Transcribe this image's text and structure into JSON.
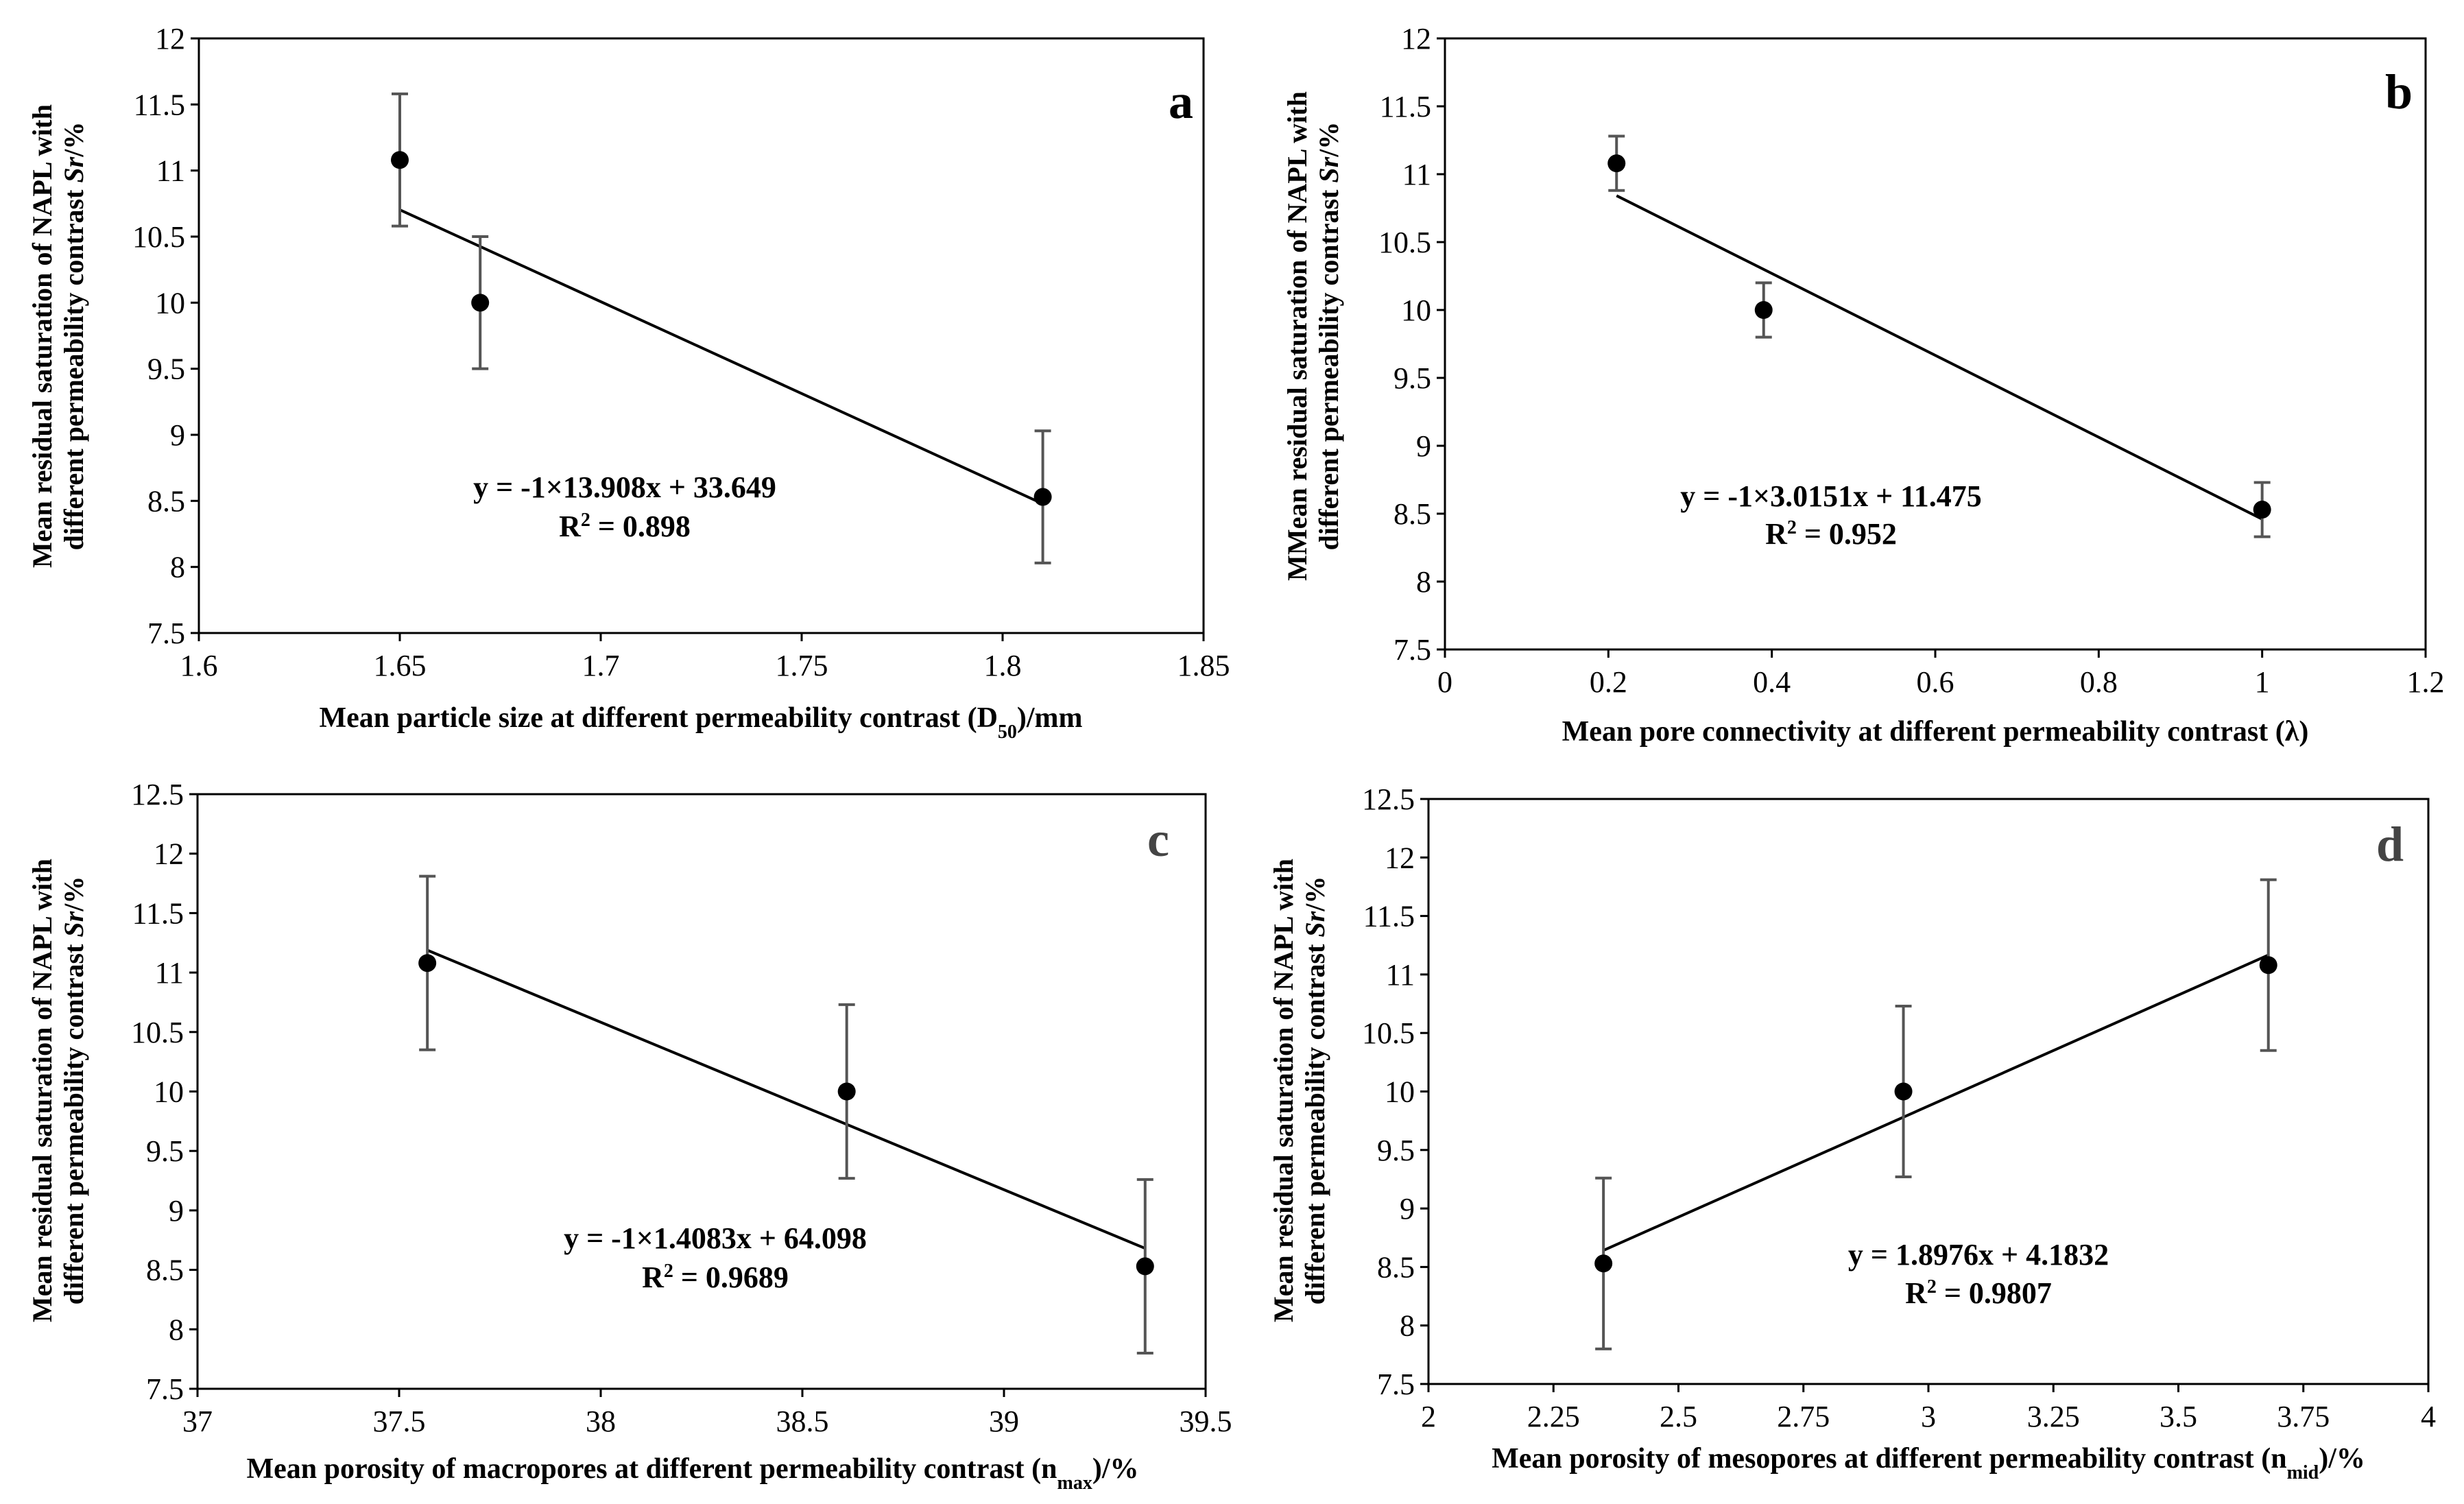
{
  "chart_data": [
    {
      "type": "scatter",
      "panel": "a",
      "xlabel": "Mean particle size at different permeability contrast (D",
      "xlabel_sub": "50",
      "xlabel_suffix": ")/mm",
      "ylabel_line1": "Mean residual saturation of NAPL with",
      "ylabel_line2": "different permeability contrast ",
      "ylabel_italic": "Sr",
      "ylabel_suffix": "/%",
      "xlim": [
        1.6,
        1.85
      ],
      "ylim": [
        7.5,
        12
      ],
      "xticks": [
        "1.6",
        "1.65",
        "1.7",
        "1.75",
        "1.8",
        "1.85"
      ],
      "yticks": [
        "7.5",
        "8",
        "8.5",
        "9",
        "9.5",
        "10",
        "10.5",
        "11",
        "11.5",
        "12"
      ],
      "series": [
        {
          "name": "data",
          "x": [
            1.65,
            1.67,
            1.81
          ],
          "y": [
            11.08,
            10.0,
            8.53
          ],
          "err": [
            0.5,
            0.5,
            0.5
          ]
        }
      ],
      "trendline": {
        "x": [
          1.65,
          1.81
        ],
        "y": [
          10.703,
          8.478
        ]
      },
      "equation": "y = -1×13.908x + 33.649",
      "r2_prefix": "R",
      "r2_sup": "2",
      "r2_value": " = 0.898"
    },
    {
      "type": "scatter",
      "panel": "b",
      "xlabel": "Mean pore connectivity at different permeability contrast (λ)",
      "xlabel_sub": "",
      "xlabel_suffix": "",
      "ylabel_line1": "MMean residual saturation of NAPL with",
      "ylabel_line2": "different permeability contrast ",
      "ylabel_italic": "Sr",
      "ylabel_suffix": "/%",
      "xlim": [
        0,
        1.2
      ],
      "ylim": [
        7.5,
        12
      ],
      "xticks": [
        "0",
        "0.2",
        "0.4",
        "0.6",
        "0.8",
        "1",
        "1.2"
      ],
      "yticks": [
        "7.5",
        "8",
        "8.5",
        "9",
        "9.5",
        "10",
        "10.5",
        "11",
        "11.5",
        "12"
      ],
      "series": [
        {
          "name": "data",
          "x": [
            0.21,
            0.39,
            1.0
          ],
          "y": [
            11.08,
            10.0,
            8.53
          ],
          "err": [
            0.2,
            0.2,
            0.2
          ]
        }
      ],
      "trendline": {
        "x": [
          0.21,
          1.0
        ],
        "y": [
          10.842,
          8.46
        ]
      },
      "equation": "y = -1×3.0151x + 11.475",
      "r2_prefix": "R",
      "r2_sup": "2",
      "r2_value": " = 0.952"
    },
    {
      "type": "scatter",
      "panel": "c",
      "xlabel": "Mean porosity of macropores at different permeability contrast (n",
      "xlabel_sub": "max",
      "xlabel_suffix": ")/%",
      "ylabel_line1": "Mean residual saturation of NAPL with",
      "ylabel_line2": "different permeability contrast ",
      "ylabel_italic": "Sr",
      "ylabel_suffix": "/%",
      "xlim": [
        37,
        39.5
      ],
      "ylim": [
        7.5,
        12.5
      ],
      "xticks": [
        "37",
        "37.5",
        "38",
        "38.5",
        "39",
        "39.5"
      ],
      "yticks": [
        "7.5",
        "8",
        "8.5",
        "9",
        "9.5",
        "10",
        "10.5",
        "11",
        "11.5",
        "12",
        "12.5"
      ],
      "series": [
        {
          "name": "data",
          "x": [
            37.57,
            38.61,
            39.35
          ],
          "y": [
            11.08,
            10.0,
            8.53
          ],
          "err": [
            0.73,
            0.73,
            0.73
          ]
        }
      ],
      "trendline": {
        "x": [
          37.57,
          39.35
        ],
        "y": [
          11.188,
          8.681
        ]
      },
      "equation": "y = -1×1.4083x + 64.098",
      "r2_prefix": "R",
      "r2_sup": "2",
      "r2_value": " = 0.9689"
    },
    {
      "type": "scatter",
      "panel": "d",
      "xlabel": "Mean porosity of mesopores at different permeability contrast (n",
      "xlabel_sub": "mid",
      "xlabel_suffix": ")/%",
      "ylabel_line1": "Mean residual saturation of NAPL with",
      "ylabel_line2": "different permeability contrast ",
      "ylabel_italic": "Sr",
      "ylabel_suffix": "/%",
      "xlim": [
        2,
        4
      ],
      "ylim": [
        7.5,
        12.5
      ],
      "xticks": [
        "2",
        "2.25",
        "2.5",
        "2.75",
        "3",
        "3.25",
        "3.5",
        "3.75",
        "4"
      ],
      "yticks": [
        "7.5",
        "8",
        "8.5",
        "9",
        "9.5",
        "10",
        "10.5",
        "11",
        "11.5",
        "12",
        "12.5"
      ],
      "series": [
        {
          "name": "data",
          "x": [
            2.35,
            2.95,
            3.68
          ],
          "y": [
            8.53,
            10.0,
            11.08
          ],
          "err": [
            0.73,
            0.73,
            0.73
          ]
        }
      ],
      "trendline": {
        "x": [
          2.35,
          3.68
        ],
        "y": [
          8.642,
          11.166
        ]
      },
      "equation": "y = 1.8976x + 4.1832",
      "r2_prefix": "R",
      "r2_sup": "2",
      "r2_value": " = 0.9807"
    }
  ]
}
